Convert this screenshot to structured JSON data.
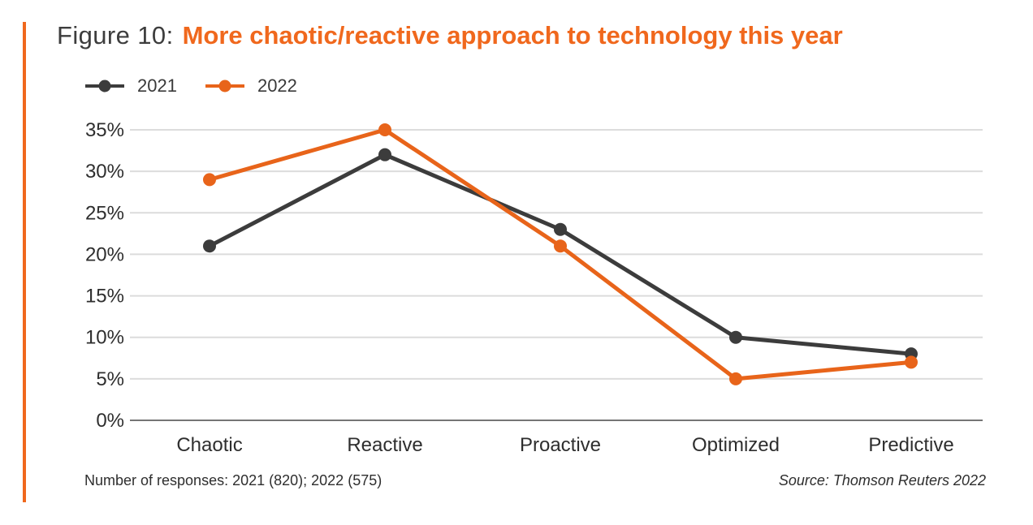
{
  "figure": {
    "label": "Figure 10:",
    "title": "More chaotic/reactive approach to technology this year"
  },
  "chart_data": {
    "type": "line",
    "title": "Figure 10: More chaotic/reactive approach to technology this year",
    "categories": [
      "Chaotic",
      "Reactive",
      "Proactive",
      "Optimized",
      "Predictive"
    ],
    "series": [
      {
        "name": "2021",
        "color": "#3C3C3C",
        "values": [
          21,
          32,
          23,
          10,
          8
        ]
      },
      {
        "name": "2022",
        "color": "#E8641A",
        "values": [
          29,
          35,
          21,
          5,
          7
        ]
      }
    ],
    "ylim": [
      0,
      35
    ],
    "y_ticks": [
      {
        "value": 35,
        "label": "35%"
      },
      {
        "value": 30,
        "label": "30%"
      },
      {
        "value": 25,
        "label": "25%"
      },
      {
        "value": 20,
        "label": "20%"
      },
      {
        "value": 15,
        "label": "15%"
      },
      {
        "value": 10,
        "label": "10%"
      },
      {
        "value": 5,
        "label": "5%"
      },
      {
        "value": 0,
        "label": "0%"
      }
    ],
    "xlabel": "",
    "ylabel": "",
    "grid": true,
    "legend_position": "top-left"
  },
  "footer": {
    "note": "Number of responses: 2021 (820); 2022 (575)",
    "source": "Source: Thomson Reuters 2022"
  },
  "colors": {
    "accent_orange": "#F0681D",
    "series_2021": "#3C3C3C",
    "series_2022": "#E8641A",
    "title_gray": "#3D3D3D",
    "text": "#2E2E2E",
    "gridline": "#DCDCDC",
    "axis_line": "#757575",
    "background": "#FFFFFF"
  }
}
